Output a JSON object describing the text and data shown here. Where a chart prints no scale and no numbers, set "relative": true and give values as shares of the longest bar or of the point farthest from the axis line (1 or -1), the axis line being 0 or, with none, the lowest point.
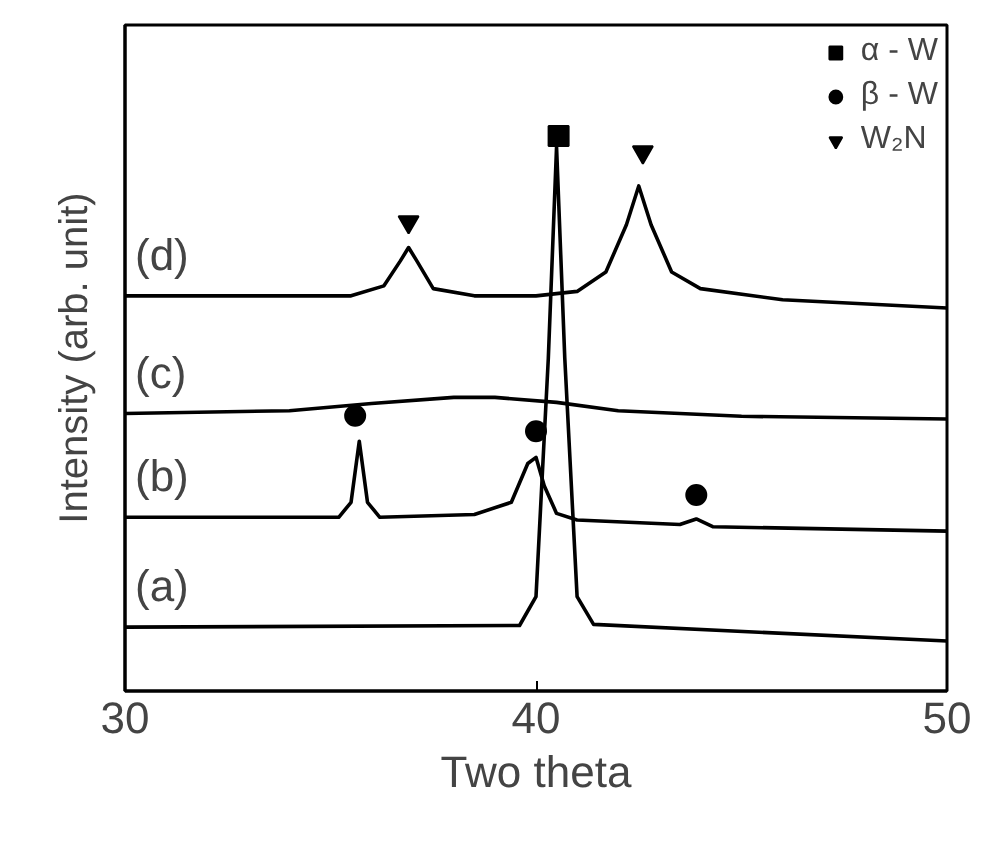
{
  "chart_data": {
    "type": "line",
    "relative": true,
    "xlabel": "Two theta",
    "ylabel": "Intensity (arb. unit)",
    "xlim": [
      30,
      50
    ],
    "xticks": [
      30,
      40,
      50
    ],
    "grid": false,
    "legend": "top right",
    "line_style": "solid",
    "series": [
      {
        "color": "#000000",
        "x": [
          30,
          39.6,
          40.0,
          40.3,
          40.5,
          40.7,
          41.0,
          41.4,
          50
        ],
        "values": [
          0.115,
          0.118,
          0.17,
          0.6,
          0.98,
          0.6,
          0.17,
          0.12,
          0.09
        ]
      },
      {
        "color": "#000000",
        "x": [
          30,
          35.2,
          35.5,
          35.7,
          35.9,
          36.2,
          38.5,
          39.4,
          39.8,
          40.0,
          40.2,
          40.5,
          41,
          43.5,
          43.9,
          44.3,
          50
        ],
        "values": [
          0.313,
          0.313,
          0.34,
          0.45,
          0.34,
          0.313,
          0.318,
          0.34,
          0.41,
          0.421,
          0.37,
          0.32,
          0.308,
          0.3,
          0.31,
          0.296,
          0.288
        ]
      },
      {
        "color": "#000000",
        "x": [
          30,
          34,
          36,
          38,
          39,
          40.5,
          42,
          45,
          50
        ],
        "values": [
          0.5,
          0.505,
          0.518,
          0.529,
          0.529,
          0.52,
          0.505,
          0.495,
          0.49
        ]
      },
      {
        "color": "#000000",
        "x": [
          30,
          35.5,
          36.3,
          36.7,
          36.9,
          37.1,
          37.5,
          38.5,
          40,
          41,
          41.7,
          42.2,
          42.5,
          42.8,
          43.3,
          44,
          46,
          50
        ],
        "values": [
          0.712,
          0.712,
          0.73,
          0.775,
          0.799,
          0.775,
          0.725,
          0.712,
          0.712,
          0.72,
          0.755,
          0.84,
          0.91,
          0.84,
          0.755,
          0.725,
          0.705,
          0.69
        ]
      },
      {
        "type": "scatter",
        "name": "α - W",
        "marker": "square",
        "color": "#000000",
        "x": [
          40.55
        ],
        "values": [
          1.0
        ]
      },
      {
        "type": "scatter",
        "name": "β - W",
        "marker": "circle",
        "color": "#000000",
        "x": [
          35.6,
          40.0,
          43.9
        ],
        "values": [
          0.496,
          0.468,
          0.353
        ]
      },
      {
        "type": "scatter",
        "name": "W₂N",
        "marker": "triangle_down",
        "color": "#000000",
        "x": [
          36.9,
          42.6
        ],
        "values": [
          0.845,
          0.971
        ]
      }
    ],
    "annotations": [
      "(d)",
      "(c)",
      "(b)",
      "(a)"
    ]
  }
}
